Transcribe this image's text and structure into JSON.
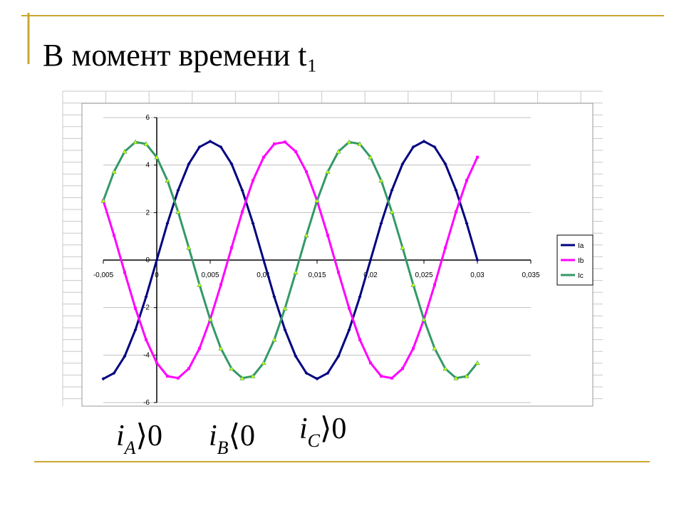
{
  "chart_data": {
    "type": "line",
    "title": "В момент времени t₁",
    "x": [
      -0.005,
      -0.004,
      -0.003,
      -0.002,
      -0.001,
      0,
      0.001,
      0.002,
      0.003,
      0.004,
      0.005,
      0.006,
      0.007,
      0.008,
      0.009,
      0.01,
      0.011,
      0.012,
      0.013,
      0.014,
      0.015,
      0.016,
      0.017,
      0.018,
      0.019,
      0.02,
      0.021,
      0.022,
      0.023,
      0.024,
      0.025,
      0.026,
      0.027,
      0.028,
      0.029,
      0.03
    ],
    "series": [
      {
        "name": "Ia",
        "color": "#000080",
        "marker": "diamond",
        "values": [
          -5,
          -4.76,
          -4.05,
          -2.94,
          -1.55,
          0,
          1.55,
          2.94,
          4.05,
          4.76,
          5,
          4.76,
          4.05,
          2.94,
          1.55,
          0,
          -1.55,
          -2.94,
          -4.05,
          -4.76,
          -5,
          -4.76,
          -4.05,
          -2.94,
          -1.55,
          0,
          1.55,
          2.94,
          4.05,
          4.76,
          5,
          4.76,
          4.05,
          2.94,
          1.55,
          0
        ]
      },
      {
        "name": "Ib",
        "color": "#ff00ff",
        "marker": "square",
        "values": [
          2.5,
          1.04,
          -0.52,
          -2.03,
          -3.35,
          -4.33,
          -4.89,
          -4.97,
          -4.57,
          -3.72,
          -2.5,
          -1.04,
          0.52,
          2.03,
          3.35,
          4.33,
          4.89,
          4.97,
          4.57,
          3.72,
          2.5,
          1.04,
          -0.52,
          -2.03,
          -3.35,
          -4.33,
          -4.89,
          -4.97,
          -4.57,
          -3.72,
          -2.5,
          -1.04,
          0.52,
          2.03,
          3.35,
          4.33
        ]
      },
      {
        "name": "Ic",
        "color": "#339966",
        "marker": "triangle",
        "values": [
          2.5,
          3.72,
          4.57,
          4.97,
          4.89,
          4.33,
          3.35,
          2.03,
          0.52,
          -1.04,
          -2.5,
          -3.72,
          -4.57,
          -4.97,
          -4.89,
          -4.33,
          -3.35,
          -2.03,
          -0.52,
          1.04,
          2.5,
          3.72,
          4.57,
          4.97,
          4.89,
          4.33,
          3.35,
          2.03,
          0.52,
          -1.04,
          -2.5,
          -3.72,
          -4.57,
          -4.97,
          -4.89,
          -4.33
        ]
      }
    ],
    "xlim": [
      -0.005,
      0.035
    ],
    "xticks": [
      {
        "value": -0.005,
        "label": "-0,005"
      },
      0,
      {
        "value": 0.005,
        "label": "0,005"
      },
      {
        "value": 0.01,
        "label": "0,01"
      },
      {
        "value": 0.015,
        "label": "0,015"
      },
      {
        "value": 0.02,
        "label": "0,02"
      },
      {
        "value": 0.025,
        "label": "0,025"
      },
      {
        "value": 0.03,
        "label": "0,03"
      },
      {
        "value": 0.035,
        "label": "0,035"
      }
    ],
    "ylim": [
      -6,
      6
    ],
    "yticks": [
      -6,
      -4,
      -2,
      0,
      2,
      4,
      6
    ],
    "grid": true,
    "legend": "right",
    "annotations": [
      {
        "var": "i",
        "sub": "A",
        "rel": "⟩0"
      },
      {
        "var": "i",
        "sub": "B",
        "rel": "⟨0"
      },
      {
        "var": "i",
        "sub": "C",
        "rel": "⟩0"
      }
    ]
  }
}
